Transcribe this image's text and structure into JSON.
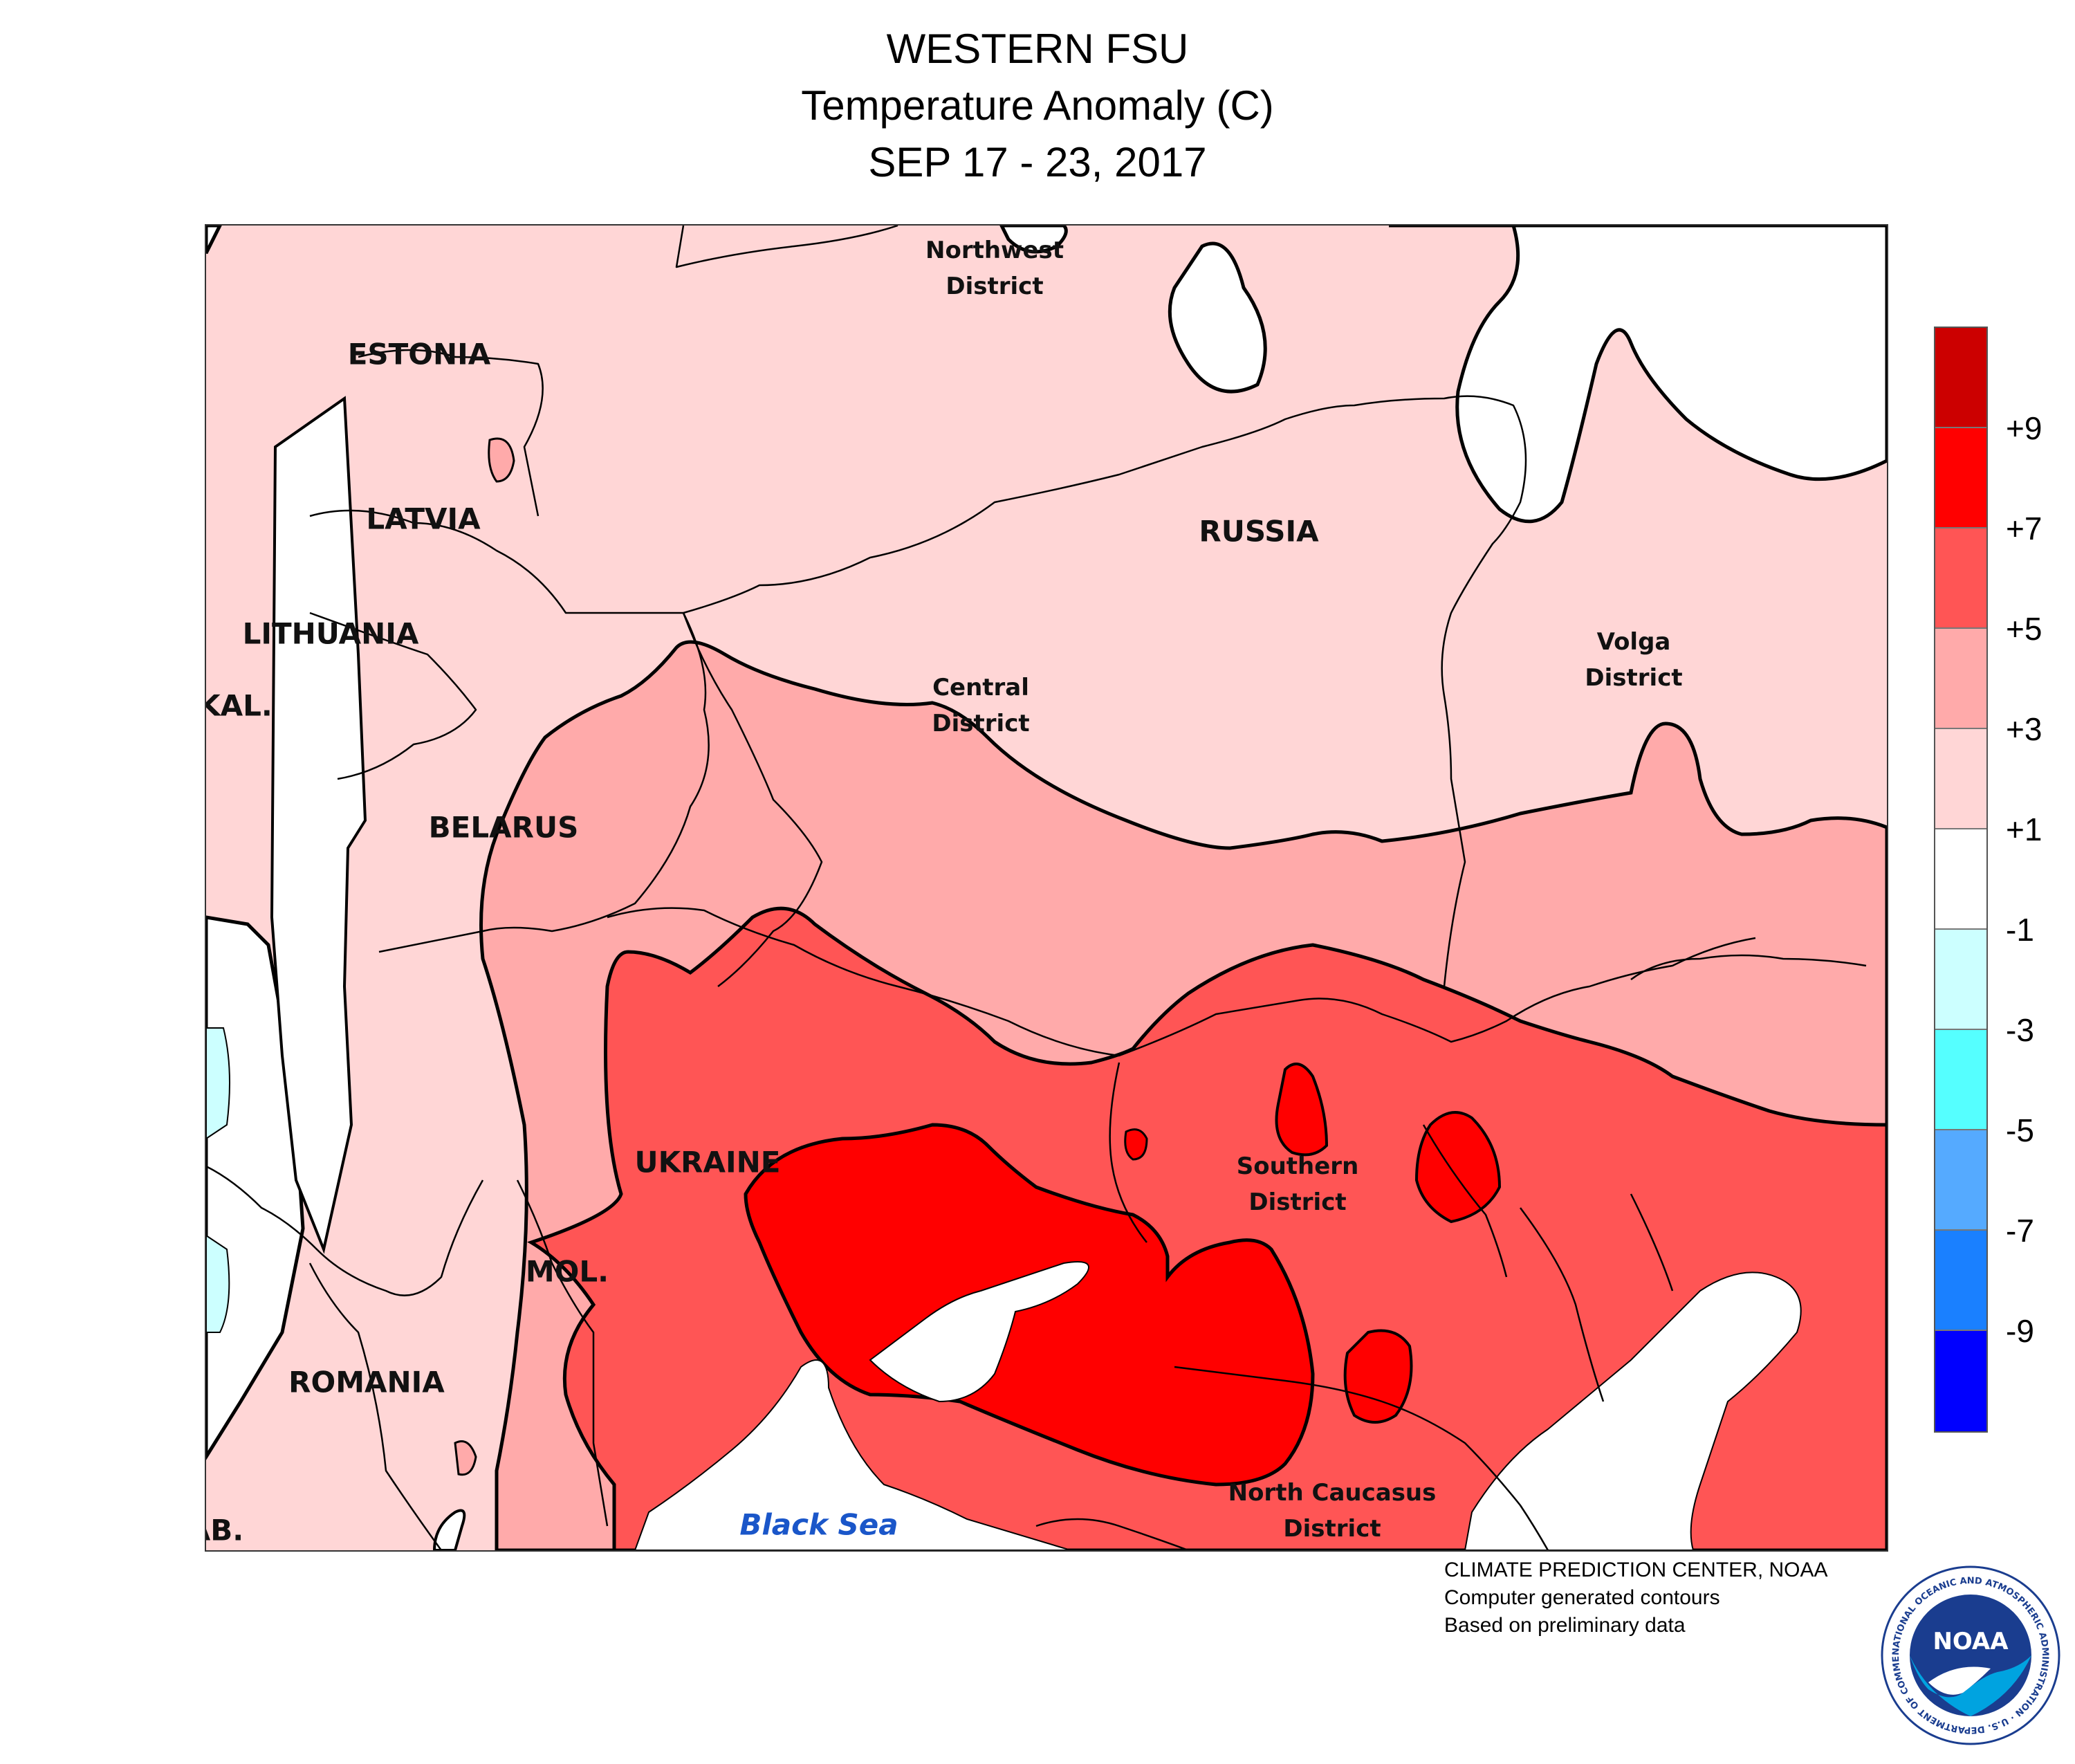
{
  "title": {
    "line1": "WESTERN FSU",
    "line2": "Temperature Anomaly (C)",
    "line3": "SEP 17 - 23, 2017"
  },
  "labels": {
    "estonia": "ESTONIA",
    "latvia": "LATVIA",
    "lithuania": "LITHUANIA",
    "kal": "KAL.",
    "belarus": "BELARUS",
    "ukraine": "UKRAINE",
    "mol": "MOL.",
    "romania": "ROMANIA",
    "ab": "AB.",
    "russia": "RUSSIA",
    "northwest_1": "Northwest",
    "northwest_2": "District",
    "central_1": "Central",
    "central_2": "District",
    "volga_1": "Volga",
    "volga_2": "District",
    "southern_1": "Southern",
    "southern_2": "District",
    "ncaucasus_1": "North Caucasus",
    "ncaucasus_2": "District",
    "black_sea": "Black Sea"
  },
  "legend": {
    "colors": [
      "#cc0000",
      "#ff0000",
      "#ff5555",
      "#ffaaaa",
      "#ffd6d6",
      "#ffffff",
      "#ccffff",
      "#55ffff",
      "#55aaff",
      "#1a80ff",
      "#0000ff"
    ],
    "ticks": [
      "+9",
      "+7",
      "+5",
      "+3",
      "+1",
      "-1",
      "-3",
      "-5",
      "-7",
      "-9"
    ]
  },
  "credits": {
    "line1": "CLIMATE PREDICTION CENTER, NOAA",
    "line2": "Computer generated contours",
    "line3": "Based on preliminary data"
  },
  "logo": {
    "text": "NOAA",
    "ring_text": "NATIONAL OCEANIC AND ATMOSPHERIC ADMINISTRATION · U.S. DEPARTMENT OF COMMERCE"
  }
}
